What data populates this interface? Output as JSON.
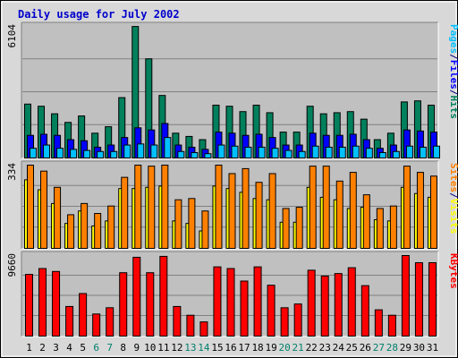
{
  "title": "Daily usage for July 2002",
  "colors": {
    "title": "#0000cc",
    "page_bg": "#d8d8d8",
    "plot_bg": "#c0c0c0",
    "grid": "#808080",
    "weekend_label": "#00806b",
    "weekday_label": "#000000",
    "separator": "#0000ff"
  },
  "chart_data": [
    {
      "type": "bar",
      "name": "hits-files-pages",
      "max_label": "6104",
      "legend": [
        {
          "text": "Pages",
          "color": "#00c0ff"
        },
        {
          "text": "/",
          "color": "#000080"
        },
        {
          "text": "Files",
          "color": "#0000ff"
        },
        {
          "text": "/",
          "color": "#000080"
        },
        {
          "text": "Hits",
          "color": "#00805c"
        }
      ],
      "ylim": [
        0,
        6104
      ],
      "categories": [
        "1",
        "2",
        "3",
        "4",
        "5",
        "6",
        "7",
        "8",
        "9",
        "10",
        "11",
        "12",
        "13",
        "14",
        "15",
        "16",
        "17",
        "18",
        "19",
        "20",
        "21",
        "22",
        "23",
        "24",
        "25",
        "26",
        "27",
        "28",
        "29",
        "30",
        "31"
      ],
      "weekend_days": [
        "6",
        "7",
        "13",
        "14",
        "20",
        "21",
        "27",
        "28"
      ],
      "series": [
        {
          "name": "Hits",
          "color": "#00805c",
          "values": [
            2500,
            2400,
            2050,
            1650,
            1950,
            1150,
            1450,
            2800,
            6100,
            4600,
            2900,
            1150,
            1000,
            850,
            2450,
            2400,
            2150,
            2450,
            2100,
            1200,
            1200,
            2400,
            2050,
            2100,
            2150,
            1800,
            850,
            1150,
            2600,
            2650,
            2450
          ]
        },
        {
          "name": "Files",
          "color": "#0000ff",
          "values": [
            1050,
            1100,
            1050,
            850,
            800,
            500,
            600,
            950,
            1400,
            1300,
            1600,
            600,
            500,
            400,
            1200,
            1150,
            1050,
            1100,
            950,
            600,
            600,
            1150,
            1050,
            1050,
            1100,
            850,
            450,
            600,
            1300,
            1250,
            1200
          ]
        },
        {
          "name": "Pages",
          "color": "#00c0ff",
          "values": [
            450,
            600,
            450,
            400,
            350,
            300,
            300,
            600,
            650,
            600,
            950,
            300,
            250,
            200,
            600,
            550,
            500,
            500,
            450,
            350,
            300,
            550,
            500,
            500,
            550,
            450,
            250,
            300,
            550,
            500,
            550
          ]
        }
      ]
    },
    {
      "type": "bar",
      "name": "visits-sites",
      "max_label": "334",
      "legend": [
        {
          "text": "Sites",
          "color": "#ff8000"
        },
        {
          "text": "/",
          "color": "#000080"
        },
        {
          "text": "Visits",
          "color": "#ffff00"
        }
      ],
      "ylim": [
        0,
        334
      ],
      "categories": [
        "1",
        "2",
        "3",
        "4",
        "5",
        "6",
        "7",
        "8",
        "9",
        "10",
        "11",
        "12",
        "13",
        "14",
        "15",
        "16",
        "17",
        "18",
        "19",
        "20",
        "21",
        "22",
        "23",
        "24",
        "25",
        "26",
        "27",
        "28",
        "29",
        "30",
        "31"
      ],
      "series": [
        {
          "name": "Visits",
          "color": "#ffff00",
          "values": [
            275,
            235,
            180,
            100,
            150,
            90,
            110,
            240,
            240,
            245,
            250,
            110,
            100,
            70,
            250,
            240,
            225,
            200,
            195,
            105,
            105,
            245,
            205,
            195,
            160,
            165,
            115,
            110,
            245,
            220,
            205
          ]
        },
        {
          "name": "Sites",
          "color": "#ff8000",
          "values": [
            334,
            310,
            245,
            135,
            180,
            140,
            170,
            285,
            334,
            330,
            334,
            195,
            200,
            150,
            334,
            300,
            320,
            265,
            300,
            160,
            165,
            330,
            330,
            270,
            305,
            215,
            160,
            170,
            330,
            305,
            290
          ]
        }
      ]
    },
    {
      "type": "bar",
      "name": "kbytes",
      "max_label": "9660",
      "legend": [
        {
          "text": "KBytes",
          "color": "#ff0000"
        }
      ],
      "ylim": [
        0,
        9660
      ],
      "categories": [
        "1",
        "2",
        "3",
        "4",
        "5",
        "6",
        "7",
        "8",
        "9",
        "10",
        "11",
        "12",
        "13",
        "14",
        "15",
        "16",
        "17",
        "18",
        "19",
        "20",
        "21",
        "22",
        "23",
        "24",
        "25",
        "26",
        "27",
        "28",
        "29",
        "30",
        "31"
      ],
      "series": [
        {
          "name": "KBytes",
          "color": "#ff0000",
          "values": [
            7400,
            8100,
            7750,
            3550,
            5100,
            2650,
            3400,
            7600,
            9450,
            7600,
            9560,
            3550,
            2500,
            1700,
            8300,
            8100,
            6600,
            8300,
            6100,
            3400,
            3850,
            7900,
            7200,
            7500,
            8200,
            6050,
            3150,
            2500,
            9660,
            8800,
            8800
          ]
        }
      ]
    }
  ]
}
